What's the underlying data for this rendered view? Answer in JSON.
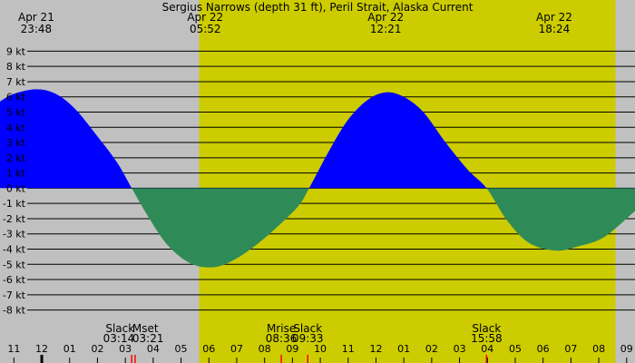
{
  "chart_data": {
    "type": "area",
    "title": "Sergius Narrows (depth 31 ft), Peril Strait, Alaska Current",
    "ylim": [
      -8.5,
      9.5
    ],
    "xlim": [
      10.5,
      33.3
    ],
    "y_ticks": [
      {
        "v": 9,
        "label": "9 kt"
      },
      {
        "v": 8,
        "label": "8 kt"
      },
      {
        "v": 7,
        "label": "7 kt"
      },
      {
        "v": 6,
        "label": "6 kt"
      },
      {
        "v": 5,
        "label": "5 kt"
      },
      {
        "v": 4,
        "label": "4 kt"
      },
      {
        "v": 3,
        "label": "3 kt"
      },
      {
        "v": 2,
        "label": "2 kt"
      },
      {
        "v": 1,
        "label": "1 kt"
      },
      {
        "v": 0,
        "label": "0 kt"
      },
      {
        "v": -1,
        "label": "-1 kt"
      },
      {
        "v": -2,
        "label": "-2 kt"
      },
      {
        "v": -3,
        "label": "-3 kt"
      },
      {
        "v": -4,
        "label": "-4 kt"
      },
      {
        "v": -5,
        "label": "-5 kt"
      },
      {
        "v": -6,
        "label": "-6 kt"
      },
      {
        "v": -7,
        "label": "-7 kt"
      },
      {
        "v": -8,
        "label": "-8 kt"
      }
    ],
    "x_ticks": [
      {
        "h": 11,
        "label": "11"
      },
      {
        "h": 12,
        "label": "12"
      },
      {
        "h": 13,
        "label": "01"
      },
      {
        "h": 14,
        "label": "02"
      },
      {
        "h": 15,
        "label": "03"
      },
      {
        "h": 16,
        "label": "04"
      },
      {
        "h": 17,
        "label": "05"
      },
      {
        "h": 18,
        "label": "06"
      },
      {
        "h": 19,
        "label": "07"
      },
      {
        "h": 20,
        "label": "08"
      },
      {
        "h": 21,
        "label": "09"
      },
      {
        "h": 22,
        "label": "10"
      },
      {
        "h": 23,
        "label": "11"
      },
      {
        "h": 24,
        "label": "12"
      },
      {
        "h": 25,
        "label": "01"
      },
      {
        "h": 26,
        "label": "02"
      },
      {
        "h": 27,
        "label": "03"
      },
      {
        "h": 28,
        "label": "04"
      },
      {
        "h": 29,
        "label": "05"
      },
      {
        "h": 30,
        "label": "06"
      },
      {
        "h": 31,
        "label": "07"
      },
      {
        "h": 32,
        "label": "08"
      },
      {
        "h": 33,
        "label": "09"
      }
    ],
    "daylight": {
      "start": 17.65,
      "end": 32.6
    },
    "series": [
      {
        "kind": "current",
        "x": [
          10.5,
          11.0,
          11.8,
          12.5,
          13.2,
          14.0,
          14.7,
          15.23,
          15.8,
          16.5,
          17.3,
          18.03,
          18.7,
          19.5,
          20.3,
          21.2,
          21.6,
          22.3,
          23.0,
          23.7,
          24.35,
          25.0,
          25.7,
          26.5,
          27.3,
          27.97,
          28.7,
          29.5,
          30.47,
          31.3,
          32.2,
          33.3
        ],
        "y": [
          5.7,
          6.2,
          6.5,
          6.2,
          5.2,
          3.4,
          1.7,
          0,
          -1.8,
          -3.7,
          -4.9,
          -5.2,
          -4.9,
          -4.0,
          -2.8,
          -1.2,
          0,
          2.4,
          4.5,
          5.8,
          6.3,
          6.0,
          5.0,
          3.0,
          1.2,
          0,
          -2.1,
          -3.6,
          -4.1,
          -3.8,
          -3.2,
          -1.5
        ]
      }
    ],
    "top_labels": [
      {
        "h": 11.8,
        "date": "Apr 21",
        "time": "23:48"
      },
      {
        "h": 17.87,
        "date": "Apr 22",
        "time": "05:52"
      },
      {
        "h": 24.35,
        "date": "Apr 22",
        "time": "12:21"
      },
      {
        "h": 30.4,
        "date": "Apr 22",
        "time": "18:24"
      }
    ],
    "events": [
      {
        "h": 15.23,
        "name": "Slack",
        "time": "03:14",
        "align": "end",
        "marker": true
      },
      {
        "h": 15.35,
        "name": "Mset",
        "time": "03:21",
        "align": "start",
        "marker": true
      },
      {
        "h": 20.6,
        "name": "Mrise",
        "time": "08:36",
        "align": "middle",
        "marker": true
      },
      {
        "h": 21.55,
        "name": "Slack",
        "time": "09:33",
        "align": "middle",
        "marker": true
      },
      {
        "h": 27.97,
        "name": "Slack",
        "time": "15:58",
        "align": "middle",
        "marker": true
      }
    ],
    "colors": {
      "night": "#c0c0c0",
      "day": "#cccc00",
      "flood": "#0000ff",
      "ebb": "#2e8b57",
      "grid": "#000000",
      "event_marker": "#ff0000",
      "midnight_tick": "#000000"
    },
    "midnight_h": 12
  }
}
